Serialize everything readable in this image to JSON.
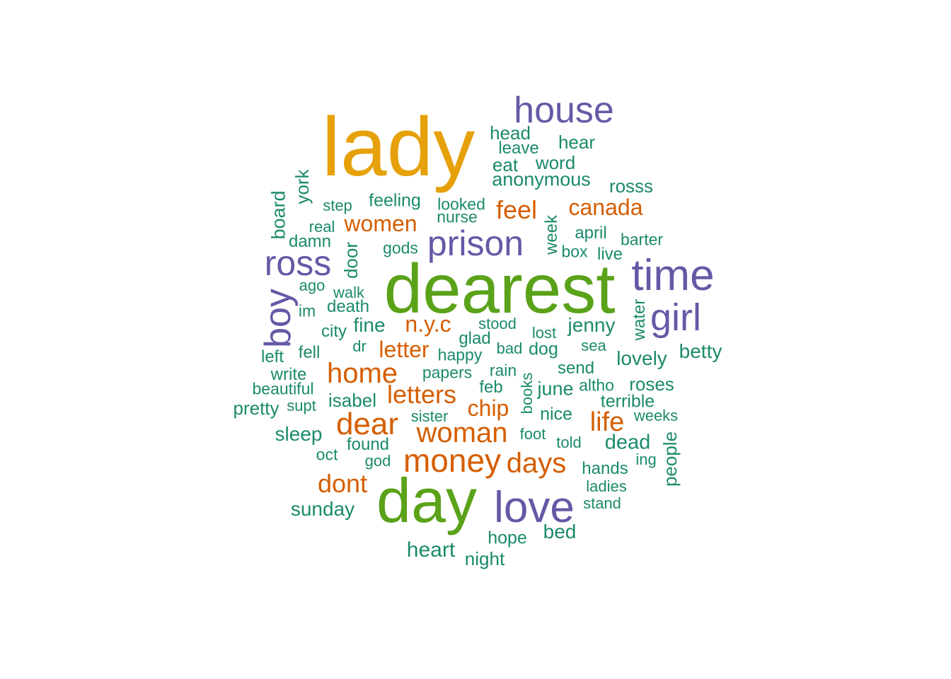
{
  "colors": {
    "orange": "#E6A10A",
    "green": "#5AA219",
    "purple": "#6459A6",
    "red": "#D55E00",
    "teal": "#1B8A6B"
  },
  "words": [
    {
      "text": "lady",
      "color": "orange"
    },
    {
      "text": "dearest",
      "color": "green"
    },
    {
      "text": "day",
      "color": "green"
    },
    {
      "text": "house",
      "color": "purple"
    },
    {
      "text": "prison",
      "color": "purple"
    },
    {
      "text": "ross",
      "color": "purple"
    },
    {
      "text": "time",
      "color": "purple"
    },
    {
      "text": "girl",
      "color": "purple"
    },
    {
      "text": "boy",
      "color": "purple"
    },
    {
      "text": "love",
      "color": "purple"
    },
    {
      "text": "money",
      "color": "red"
    },
    {
      "text": "woman",
      "color": "red"
    },
    {
      "text": "dear",
      "color": "red"
    },
    {
      "text": "home",
      "color": "red"
    },
    {
      "text": "letters",
      "color": "red"
    },
    {
      "text": "days",
      "color": "red"
    },
    {
      "text": "dont",
      "color": "red"
    },
    {
      "text": "life",
      "color": "red"
    },
    {
      "text": "feel",
      "color": "red"
    },
    {
      "text": "canada",
      "color": "red"
    },
    {
      "text": "women",
      "color": "red"
    },
    {
      "text": "n.y.c",
      "color": "red"
    },
    {
      "text": "letter",
      "color": "red"
    },
    {
      "text": "chip",
      "color": "red"
    },
    {
      "text": "head",
      "color": "teal"
    },
    {
      "text": "leave",
      "color": "teal"
    },
    {
      "text": "hear",
      "color": "teal"
    },
    {
      "text": "eat",
      "color": "teal"
    },
    {
      "text": "word",
      "color": "teal"
    },
    {
      "text": "anonymous",
      "color": "teal"
    },
    {
      "text": "rosss",
      "color": "teal"
    },
    {
      "text": "york",
      "color": "teal"
    },
    {
      "text": "board",
      "color": "teal"
    },
    {
      "text": "step",
      "color": "teal"
    },
    {
      "text": "feeling",
      "color": "teal"
    },
    {
      "text": "looked",
      "color": "teal"
    },
    {
      "text": "nurse",
      "color": "teal"
    },
    {
      "text": "real",
      "color": "teal"
    },
    {
      "text": "damn",
      "color": "teal"
    },
    {
      "text": "gods",
      "color": "teal"
    },
    {
      "text": "door",
      "color": "teal"
    },
    {
      "text": "week",
      "color": "teal"
    },
    {
      "text": "april",
      "color": "teal"
    },
    {
      "text": "barter",
      "color": "teal"
    },
    {
      "text": "box",
      "color": "teal"
    },
    {
      "text": "live",
      "color": "teal"
    },
    {
      "text": "ago",
      "color": "teal"
    },
    {
      "text": "walk",
      "color": "teal"
    },
    {
      "text": "im",
      "color": "teal"
    },
    {
      "text": "death",
      "color": "teal"
    },
    {
      "text": "water",
      "color": "teal"
    },
    {
      "text": "city",
      "color": "teal"
    },
    {
      "text": "fine",
      "color": "teal"
    },
    {
      "text": "stood",
      "color": "teal"
    },
    {
      "text": "glad",
      "color": "teal"
    },
    {
      "text": "lost",
      "color": "teal"
    },
    {
      "text": "jenny",
      "color": "teal"
    },
    {
      "text": "left",
      "color": "teal"
    },
    {
      "text": "fell",
      "color": "teal"
    },
    {
      "text": "dr",
      "color": "teal"
    },
    {
      "text": "happy",
      "color": "teal"
    },
    {
      "text": "bad",
      "color": "teal"
    },
    {
      "text": "dog",
      "color": "teal"
    },
    {
      "text": "sea",
      "color": "teal"
    },
    {
      "text": "lovely",
      "color": "teal"
    },
    {
      "text": "betty",
      "color": "teal"
    },
    {
      "text": "write",
      "color": "teal"
    },
    {
      "text": "papers",
      "color": "teal"
    },
    {
      "text": "rain",
      "color": "teal"
    },
    {
      "text": "send",
      "color": "teal"
    },
    {
      "text": "beautiful",
      "color": "teal"
    },
    {
      "text": "feb",
      "color": "teal"
    },
    {
      "text": "books",
      "color": "teal"
    },
    {
      "text": "june",
      "color": "teal"
    },
    {
      "text": "altho",
      "color": "teal"
    },
    {
      "text": "roses",
      "color": "teal"
    },
    {
      "text": "isabel",
      "color": "teal"
    },
    {
      "text": "pretty",
      "color": "teal"
    },
    {
      "text": "supt",
      "color": "teal"
    },
    {
      "text": "terrible",
      "color": "teal"
    },
    {
      "text": "sister",
      "color": "teal"
    },
    {
      "text": "nice",
      "color": "teal"
    },
    {
      "text": "weeks",
      "color": "teal"
    },
    {
      "text": "sleep",
      "color": "teal"
    },
    {
      "text": "foot",
      "color": "teal"
    },
    {
      "text": "found",
      "color": "teal"
    },
    {
      "text": "told",
      "color": "teal"
    },
    {
      "text": "dead",
      "color": "teal"
    },
    {
      "text": "people",
      "color": "teal"
    },
    {
      "text": "oct",
      "color": "teal"
    },
    {
      "text": "god",
      "color": "teal"
    },
    {
      "text": "ing",
      "color": "teal"
    },
    {
      "text": "hands",
      "color": "teal"
    },
    {
      "text": "ladies",
      "color": "teal"
    },
    {
      "text": "sunday",
      "color": "teal"
    },
    {
      "text": "stand",
      "color": "teal"
    },
    {
      "text": "hope",
      "color": "teal"
    },
    {
      "text": "bed",
      "color": "teal"
    },
    {
      "text": "heart",
      "color": "teal"
    },
    {
      "text": "night",
      "color": "teal"
    }
  ]
}
